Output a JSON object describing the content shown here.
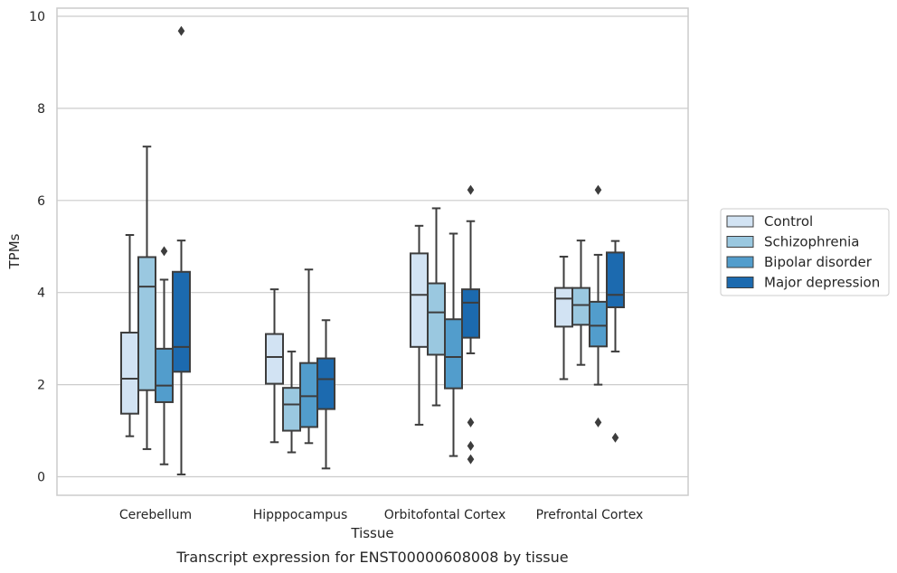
{
  "chart_data": {
    "type": "box",
    "title": "",
    "caption": "Transcript expression for ENST00000608008 by tissue",
    "xlabel": "Tissue",
    "ylabel": "TPMs",
    "ylim": [
      -0.4,
      10.2
    ],
    "yticks": [
      0,
      2,
      4,
      6,
      8,
      10
    ],
    "grid": "horizontal",
    "legend_position": "right",
    "categories": [
      "Cerebellum",
      "Hipppocampus",
      "Orbitofontal Cortex",
      "Prefrontal Cortex"
    ],
    "series": [
      {
        "name": "Control",
        "color": "#d2e3f3",
        "boxes": [
          {
            "whisker_low": 0.88,
            "q1": 1.37,
            "median": 2.13,
            "q3": 3.13,
            "whisker_high": 5.25,
            "outliers": []
          },
          {
            "whisker_low": 0.75,
            "q1": 2.02,
            "median": 2.6,
            "q3": 3.1,
            "whisker_high": 4.07,
            "outliers": []
          },
          {
            "whisker_low": 1.13,
            "q1": 2.82,
            "median": 3.95,
            "q3": 4.85,
            "whisker_high": 5.45,
            "outliers": []
          },
          {
            "whisker_low": 2.12,
            "q1": 3.26,
            "median": 3.87,
            "q3": 4.1,
            "whisker_high": 4.78,
            "outliers": []
          }
        ]
      },
      {
        "name": "Schizophrenia",
        "color": "#9ac8e0",
        "boxes": [
          {
            "whisker_low": 0.6,
            "q1": 1.88,
            "median": 4.13,
            "q3": 4.77,
            "whisker_high": 7.17,
            "outliers": []
          },
          {
            "whisker_low": 0.53,
            "q1": 1.0,
            "median": 1.57,
            "q3": 1.93,
            "whisker_high": 2.72,
            "outliers": []
          },
          {
            "whisker_low": 1.55,
            "q1": 2.65,
            "median": 3.57,
            "q3": 4.2,
            "whisker_high": 5.83,
            "outliers": []
          },
          {
            "whisker_low": 2.43,
            "q1": 3.3,
            "median": 3.73,
            "q3": 4.1,
            "whisker_high": 5.13,
            "outliers": []
          }
        ]
      },
      {
        "name": "Bipolar disorder",
        "color": "#529dcc",
        "boxes": [
          {
            "whisker_low": 0.27,
            "q1": 1.62,
            "median": 1.98,
            "q3": 2.78,
            "whisker_high": 4.28,
            "outliers": [
              4.9
            ]
          },
          {
            "whisker_low": 0.73,
            "q1": 1.08,
            "median": 1.75,
            "q3": 2.47,
            "whisker_high": 4.5,
            "outliers": []
          },
          {
            "whisker_low": 0.45,
            "q1": 1.92,
            "median": 2.6,
            "q3": 3.42,
            "whisker_high": 5.28,
            "outliers": []
          },
          {
            "whisker_low": 2.0,
            "q1": 2.83,
            "median": 3.28,
            "q3": 3.8,
            "whisker_high": 4.82,
            "outliers": [
              6.23,
              1.18
            ]
          }
        ]
      },
      {
        "name": "Major depression",
        "color": "#1c6aaf",
        "boxes": [
          {
            "whisker_low": 0.05,
            "q1": 2.28,
            "median": 2.82,
            "q3": 4.45,
            "whisker_high": 5.13,
            "outliers": [
              9.68
            ]
          },
          {
            "whisker_low": 0.18,
            "q1": 1.47,
            "median": 2.12,
            "q3": 2.57,
            "whisker_high": 3.4,
            "outliers": []
          },
          {
            "whisker_low": 2.68,
            "q1": 3.02,
            "median": 3.78,
            "q3": 4.07,
            "whisker_high": 5.55,
            "outliers": [
              6.23,
              1.18,
              0.67,
              0.38
            ]
          },
          {
            "whisker_low": 2.72,
            "q1": 3.68,
            "median": 3.95,
            "q3": 4.87,
            "whisker_high": 5.12,
            "outliers": [
              0.85
            ]
          }
        ]
      }
    ]
  }
}
